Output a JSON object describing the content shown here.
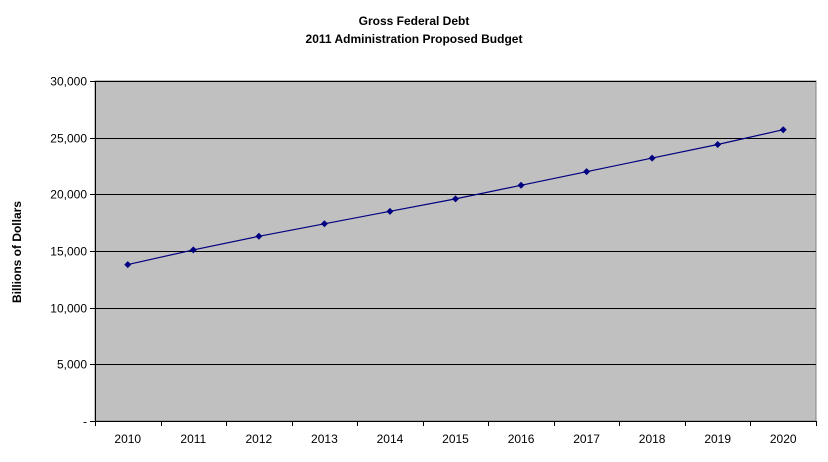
{
  "chart_data": {
    "type": "line",
    "title": "Gross Federal Debt",
    "subtitle": "2011 Administration Proposed Budget",
    "xlabel": "",
    "ylabel": "Billions of Dollars",
    "categories": [
      "2010",
      "2011",
      "2012",
      "2013",
      "2014",
      "2015",
      "2016",
      "2017",
      "2018",
      "2019",
      "2020"
    ],
    "series": [
      {
        "values": [
          13800,
          15100,
          16300,
          17400,
          18500,
          19600,
          20800,
          22000,
          23200,
          24400,
          25700
        ]
      }
    ],
    "ylim": [
      0,
      30000
    ],
    "yticks": [
      0,
      5000,
      10000,
      15000,
      20000,
      25000,
      30000
    ],
    "ytick_labels": [
      "-",
      "5,000",
      "10,000",
      "15,000",
      "20,000",
      "25,000",
      "30,000"
    ],
    "grid": true,
    "legend": "none",
    "colors": {
      "line": "#000080",
      "plot_background": "#c0c0c0",
      "gridline": "#000000"
    }
  }
}
